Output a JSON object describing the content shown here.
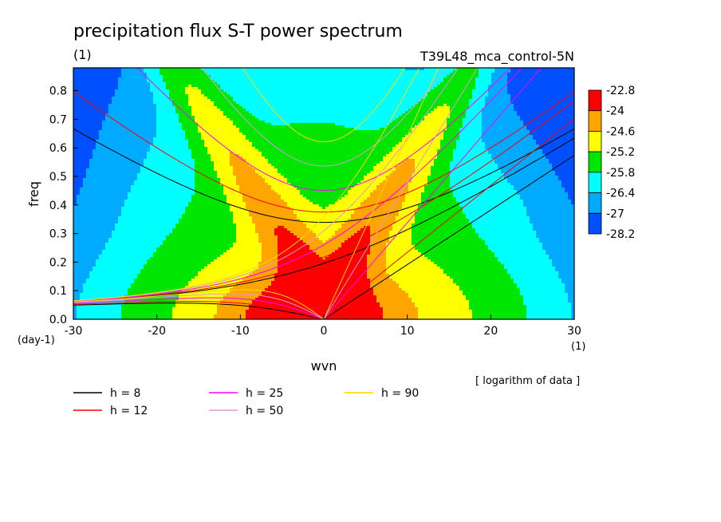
{
  "chart_data": {
    "type": "heatmap",
    "title": "precipitation flux S-T power spectrum",
    "subtitle_left": "(1)",
    "subtitle_right": "T39L48_mca_control-5N",
    "xlabel": "wvn",
    "ylabel": "freq",
    "x_unit": "(1)",
    "y_unit": "(day-1)",
    "note": "[ logarithm of data ]",
    "xlim": [
      -30,
      30
    ],
    "ylim": [
      0,
      0.88
    ],
    "xticks": [
      "-30",
      "-20",
      "-10",
      "0",
      "10",
      "20",
      "30"
    ],
    "xtick_values": [
      -30,
      -20,
      -10,
      0,
      10,
      20,
      30
    ],
    "yticks": [
      "0.0",
      "0.1",
      "0.2",
      "0.3",
      "0.4",
      "0.5",
      "0.6",
      "0.7",
      "0.8"
    ],
    "ytick_values": [
      0,
      0.1,
      0.2,
      0.3,
      0.4,
      0.5,
      0.6,
      0.7,
      0.8
    ],
    "colorbar": {
      "labels": [
        "-22.8",
        "-24",
        "-24.6",
        "-25.2",
        "-25.8",
        "-26.4",
        "-27",
        "-28.2"
      ],
      "colors": [
        "#ff0000",
        "#ffa500",
        "#ffff00",
        "#00e600",
        "#00ffff",
        "#00aaff",
        "#0050ff"
      ]
    },
    "contour_levels": [
      -24,
      -24.6,
      -25.2,
      -25.8,
      -26.4,
      -27
    ],
    "dispersion_curves": [
      {
        "name": "h =  8",
        "h": 8,
        "color": "#000000"
      },
      {
        "name": "h = 12",
        "h": 12,
        "color": "#ff0000"
      },
      {
        "name": "h = 25",
        "h": 25,
        "color": "#ff00ff"
      },
      {
        "name": "h = 50",
        "h": 50,
        "color": "#dd99dd"
      },
      {
        "name": "h = 90",
        "h": 90,
        "color": "#ffd700"
      }
    ]
  }
}
